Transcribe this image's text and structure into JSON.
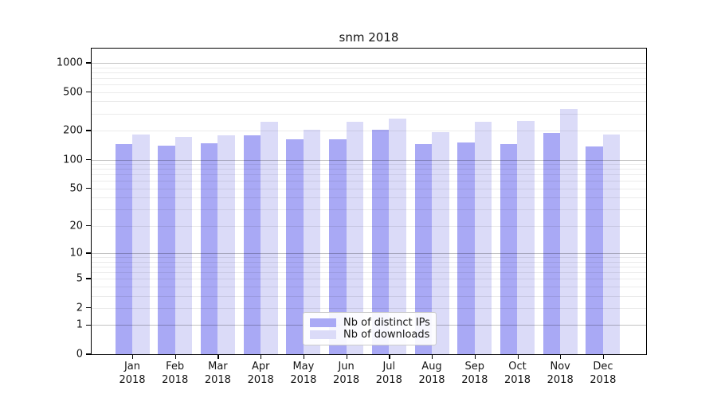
{
  "title": "snm 2018",
  "y_axis": {
    "tick_labels": [
      1000,
      500,
      200,
      100,
      50,
      20,
      10,
      5,
      2,
      1,
      0
    ],
    "scale": "log10(1+x)"
  },
  "x_axis": {
    "months": [
      "Jan",
      "Feb",
      "Mar",
      "Apr",
      "May",
      "Jun",
      "Jul",
      "Aug",
      "Sep",
      "Oct",
      "Nov",
      "Dec"
    ],
    "year": "2018"
  },
  "legend": {
    "items": [
      {
        "label": "Nb of distinct IPs",
        "color": "#a9a9f5"
      },
      {
        "label": "Nb of downloads",
        "color": "#dbdbf8"
      }
    ]
  },
  "colors": {
    "distinct_ips_bar": "#a9a9f5",
    "downloads_bar": "#dbdbf8",
    "major_gridline": "#c9c9c9",
    "minor_gridline": "#eaeaea",
    "axis": "#000000"
  },
  "chart_data": {
    "type": "bar",
    "title": "snm 2018",
    "categories": [
      "Jan 2018",
      "Feb 2018",
      "Mar 2018",
      "Apr 2018",
      "May 2018",
      "Jun 2018",
      "Jul 2018",
      "Aug 2018",
      "Sep 2018",
      "Oct 2018",
      "Nov 2018",
      "Dec 2018"
    ],
    "series": [
      {
        "name": "Nb of distinct IPs",
        "color": "#a9a9f5",
        "values": [
          145,
          140,
          149,
          178,
          163,
          163,
          204,
          144,
          152,
          146,
          190,
          136
        ]
      },
      {
        "name": "Nb of downloads",
        "color": "#dbdbf8",
        "values": [
          182,
          172,
          178,
          247,
          206,
          246,
          266,
          191,
          247,
          252,
          331,
          182
        ]
      }
    ],
    "xlabel": "",
    "ylabel": "",
    "yscale": "log10(1+x)",
    "y_ticks": [
      0,
      1,
      2,
      5,
      10,
      20,
      50,
      100,
      200,
      500,
      1000
    ],
    "ylim": [
      0,
      1380
    ],
    "grid": true,
    "grid_above_bars": true,
    "legend_position": "lower center"
  }
}
